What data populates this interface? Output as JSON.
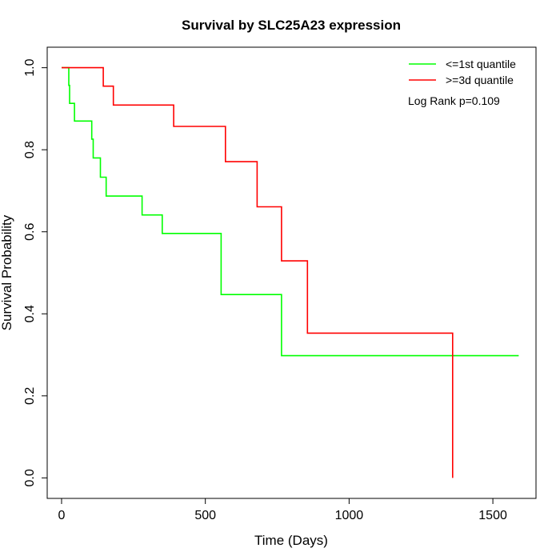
{
  "chart_data": {
    "type": "line",
    "step": true,
    "title": "Survival by SLC25A23 expression",
    "xlabel": "Time (Days)",
    "ylabel": "Survival Probability",
    "xlim": [
      -50,
      1650
    ],
    "ylim": [
      -0.05,
      1.05
    ],
    "xticks": [
      0,
      500,
      1000,
      1500
    ],
    "yticks": [
      0.0,
      0.2,
      0.4,
      0.6,
      0.8,
      1.0
    ],
    "xtick_labels": [
      "0",
      "500",
      "1000",
      "1500"
    ],
    "ytick_labels": [
      "0.0",
      "0.2",
      "0.4",
      "0.6",
      "0.8",
      "1.0"
    ],
    "grid": false,
    "legend_position": "top-right",
    "annotation": "Log Rank p=0.109",
    "series": [
      {
        "name": "<=1st quantile",
        "color": "#00ff00",
        "x": [
          0,
          25,
          25,
          28,
          28,
          45,
          45,
          105,
          105,
          110,
          110,
          135,
          135,
          155,
          155,
          280,
          280,
          350,
          350,
          555,
          555,
          765,
          765,
          1590
        ],
        "y": [
          1.0,
          1.0,
          0.957,
          0.957,
          0.913,
          0.913,
          0.87,
          0.87,
          0.826,
          0.826,
          0.78,
          0.78,
          0.733,
          0.733,
          0.687,
          0.687,
          0.641,
          0.641,
          0.596,
          0.596,
          0.447,
          0.447,
          0.298,
          0.298
        ]
      },
      {
        "name": ">=3d quantile",
        "color": "#ff0000",
        "x": [
          0,
          145,
          145,
          180,
          180,
          390,
          390,
          570,
          570,
          680,
          680,
          765,
          765,
          855,
          855,
          1360,
          1360
        ],
        "y": [
          1.0,
          1.0,
          0.955,
          0.955,
          0.909,
          0.909,
          0.857,
          0.857,
          0.771,
          0.771,
          0.661,
          0.661,
          0.529,
          0.529,
          0.353,
          0.353,
          0.0
        ]
      }
    ]
  }
}
